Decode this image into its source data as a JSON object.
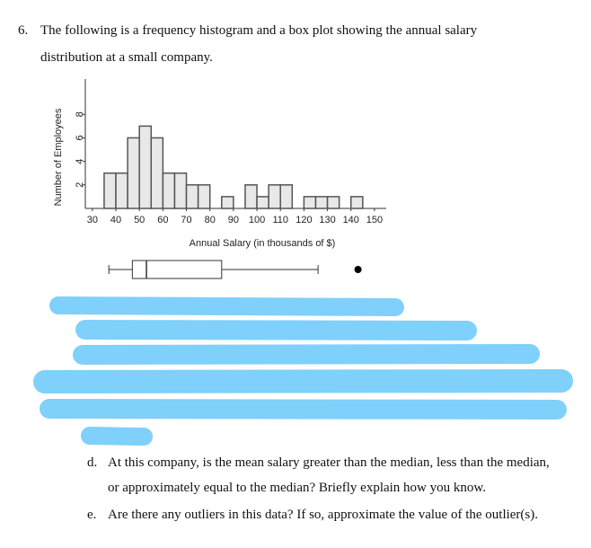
{
  "question": {
    "number": "6.",
    "lines": [
      "The following is a frequency histogram and a box plot showing the annual salary",
      "distribution at a small company."
    ]
  },
  "chart_data": {
    "type": "histogram",
    "xlabel": "Annual Salary (in thousands of $)",
    "ylabel": "Number of Employees",
    "bins": [
      35,
      40,
      45,
      50,
      55,
      60,
      65,
      70,
      75,
      80,
      85,
      90,
      95,
      100,
      105,
      110,
      115,
      120,
      125,
      130,
      135,
      140,
      145
    ],
    "values": [
      3,
      3,
      6,
      7,
      6,
      3,
      3,
      2,
      2,
      0,
      1,
      0,
      2,
      1,
      2,
      2,
      0,
      1,
      1,
      1,
      0,
      1
    ],
    "xlim": [
      27,
      155
    ],
    "ylim": [
      0,
      11
    ],
    "xticks": [
      30,
      40,
      50,
      60,
      70,
      80,
      90,
      100,
      110,
      120,
      130,
      140,
      150
    ],
    "yticks": [
      2,
      4,
      6,
      8
    ],
    "boxplot": {
      "min": 37,
      "q1": 47,
      "median": 53,
      "q3": 85,
      "max": 126,
      "outliers": [
        143
      ]
    }
  },
  "parts": [
    {
      "label": "d.",
      "lines": [
        "At this company, is the mean salary greater than the median, less than the median,",
        "or approximately equal to the median? Briefly explain how you know."
      ]
    },
    {
      "label": "e.",
      "lines": [
        "Are there any outliers in this data? If so, approximate the value of the outlier(s)."
      ]
    }
  ]
}
